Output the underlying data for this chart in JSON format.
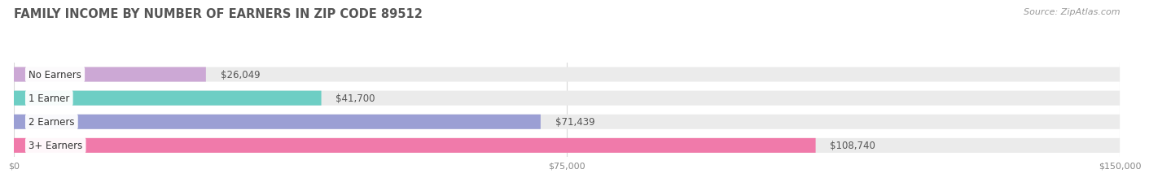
{
  "title": "FAMILY INCOME BY NUMBER OF EARNERS IN ZIP CODE 89512",
  "source": "Source: ZipAtlas.com",
  "categories": [
    "No Earners",
    "1 Earner",
    "2 Earners",
    "3+ Earners"
  ],
  "values": [
    26049,
    41700,
    71439,
    108740
  ],
  "labels": [
    "$26,049",
    "$41,700",
    "$71,439",
    "$108,740"
  ],
  "bar_colors": [
    "#cca8d5",
    "#6dcec4",
    "#9b9fd4",
    "#f07aaa"
  ],
  "bar_bg_color": "#ebebeb",
  "xmax": 150000,
  "xtick_labels": [
    "$0",
    "$75,000",
    "$150,000"
  ],
  "xtick_vals": [
    0,
    75000,
    150000
  ],
  "title_color": "#555555",
  "title_fontsize": 10.5,
  "source_fontsize": 8,
  "source_color": "#999999",
  "label_fontsize": 8.5,
  "category_fontsize": 8.5,
  "background_color": "#ffffff",
  "grid_color": "#d8d8d8",
  "label_inside_threshold": 100000,
  "label_inside_color": "#ffffff",
  "label_outside_color": "#555555"
}
